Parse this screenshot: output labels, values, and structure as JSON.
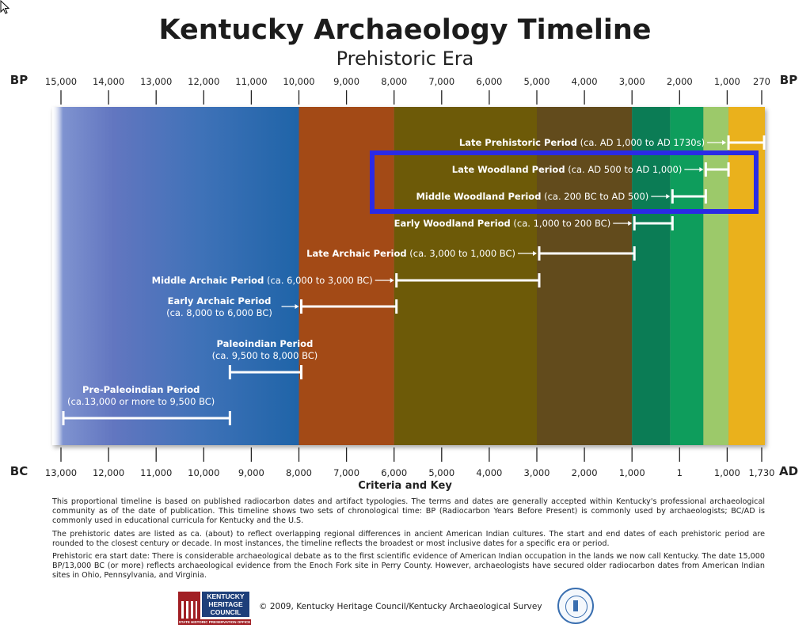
{
  "title": "Kentucky Archaeology Timeline",
  "subtitle": "Prehistoric Era",
  "chart_data": {
    "type": "timeline",
    "top_axis": {
      "label": "BP",
      "label_right": "BP",
      "ticks": [
        "15,000",
        "14,000",
        "13,000",
        "12,000",
        "11,000",
        "10,000",
        "9,000",
        "8,000",
        "7,000",
        "6,000",
        "5,000",
        "4,000",
        "3,000",
        "2,000",
        "1,000",
        "270"
      ]
    },
    "bottom_axis": {
      "label": "BC",
      "label_right": "AD",
      "ticks": [
        "13,000",
        "12,000",
        "11,000",
        "10,000",
        "9,000",
        "8,000",
        "7,000",
        "6,000",
        "5,000",
        "4,000",
        "3,000",
        "2,000",
        "1,000",
        "1",
        "1,000",
        "1,730"
      ]
    },
    "color_bands": [
      {
        "from_bp": 15000,
        "to_bp": 10000,
        "color": "#5a72b8"
      },
      {
        "from_bp": 10000,
        "to_bp": 8000,
        "color": "#a34a16"
      },
      {
        "from_bp": 8000,
        "to_bp": 5000,
        "color": "#6d5a08"
      },
      {
        "from_bp": 5000,
        "to_bp": 3000,
        "color": "#624b1c"
      },
      {
        "from_bp": 3000,
        "to_bp": 2200,
        "color": "#0b7c55"
      },
      {
        "from_bp": 2200,
        "to_bp": 1500,
        "color": "#0e9d5c"
      },
      {
        "from_bp": 1500,
        "to_bp": 950,
        "color": "#9cc96a"
      },
      {
        "from_bp": 950,
        "to_bp": 270,
        "color": "#eab11c"
      }
    ],
    "periods": [
      {
        "name": "Late Prehistoric Period",
        "range": "(ca. AD 1,000 to AD 1730s)",
        "start_bp": 950,
        "end_bp": 220,
        "arrow": true,
        "label_side": "left"
      },
      {
        "name": "Late Woodland Period",
        "range": "(ca. AD 500 to AD 1,000)",
        "start_bp": 1450,
        "end_bp": 950,
        "arrow": true,
        "label_side": "left"
      },
      {
        "name": "Middle Woodland Period",
        "range": "(ca. 200 BC to AD 500)",
        "start_bp": 2150,
        "end_bp": 1450,
        "arrow": true,
        "label_side": "left"
      },
      {
        "name": "Early Woodland Period",
        "range": "(ca. 1,000 to 200 BC)",
        "start_bp": 2950,
        "end_bp": 2150,
        "arrow": true,
        "label_side": "left"
      },
      {
        "name": "Late Archaic Period",
        "range": "(ca. 3,000 to 1,000 BC)",
        "start_bp": 4950,
        "end_bp": 2950,
        "arrow": true,
        "label_side": "left"
      },
      {
        "name": "Middle Archaic Period",
        "range": "(ca. 6,000 to 3,000 BC)",
        "start_bp": 7950,
        "end_bp": 4950,
        "arrow": true,
        "label_side": "left"
      },
      {
        "name": "Early Archaic Period",
        "range": "(ca. 8,000 to 6,000 BC)",
        "start_bp": 9950,
        "end_bp": 7950,
        "arrow": true,
        "label_side": "left-stacked"
      },
      {
        "name": "Paleoindian Period",
        "range": "(ca. 9,500 to 8,000 BC)",
        "start_bp": 11450,
        "end_bp": 9950,
        "arrow": false,
        "label_side": "above"
      },
      {
        "name": "Pre-Paleoindian Period",
        "range": "(ca.13,000 or more to 9,500 BC)",
        "start_bp": 14950,
        "end_bp": 11450,
        "arrow": false,
        "label_side": "above"
      }
    ],
    "highlighted": [
      "Late Woodland Period",
      "Middle Woodland Period"
    ],
    "highlight_color": "#2a2ae6"
  },
  "criteria_heading": "Criteria and Key",
  "notes": [
    "This proportional timeline is based on published radiocarbon dates and artifact typologies. The terms and dates are generally accepted within Kentucky's professional archaeological community as of the date of publication. This timeline shows two sets of chronological time: BP (Radiocarbon Years Before Present) is commonly used by archaeologists; BC/AD is commonly used in educational curricula for Kentucky and the U.S.",
    "The prehistoric dates are listed as ca. (about) to reflect overlapping regional differences in ancient American Indian cultures. The start and end dates of each prehistoric period are rounded to the closest century or decade. In most instances, the timeline reflects the broadest or most inclusive dates for a specific era or period.",
    "Prehistoric era start date: There is considerable archaeological debate as to the first scientific evidence of American Indian occupation in the lands we now call Kentucky. The date 15,000 BP/13,000 BC (or more) reflects archaeological evidence from the Enoch Fork site in Perry County. However, archaeologists have secured older radiocarbon dates from American Indian sites in Ohio, Pennsylvania, and Virginia."
  ],
  "footer": {
    "logo_left_text": [
      "KENTUCKY",
      "HERITAGE",
      "COUNCIL"
    ],
    "logo_left_tagline": "STATE HISTORIC PRESERVATION OFFICE",
    "copyright": "© 2009, Kentucky Heritage Council/Kentucky Archaeological Survey",
    "logo_right": "kentucky-archaeological-survey-seal"
  }
}
